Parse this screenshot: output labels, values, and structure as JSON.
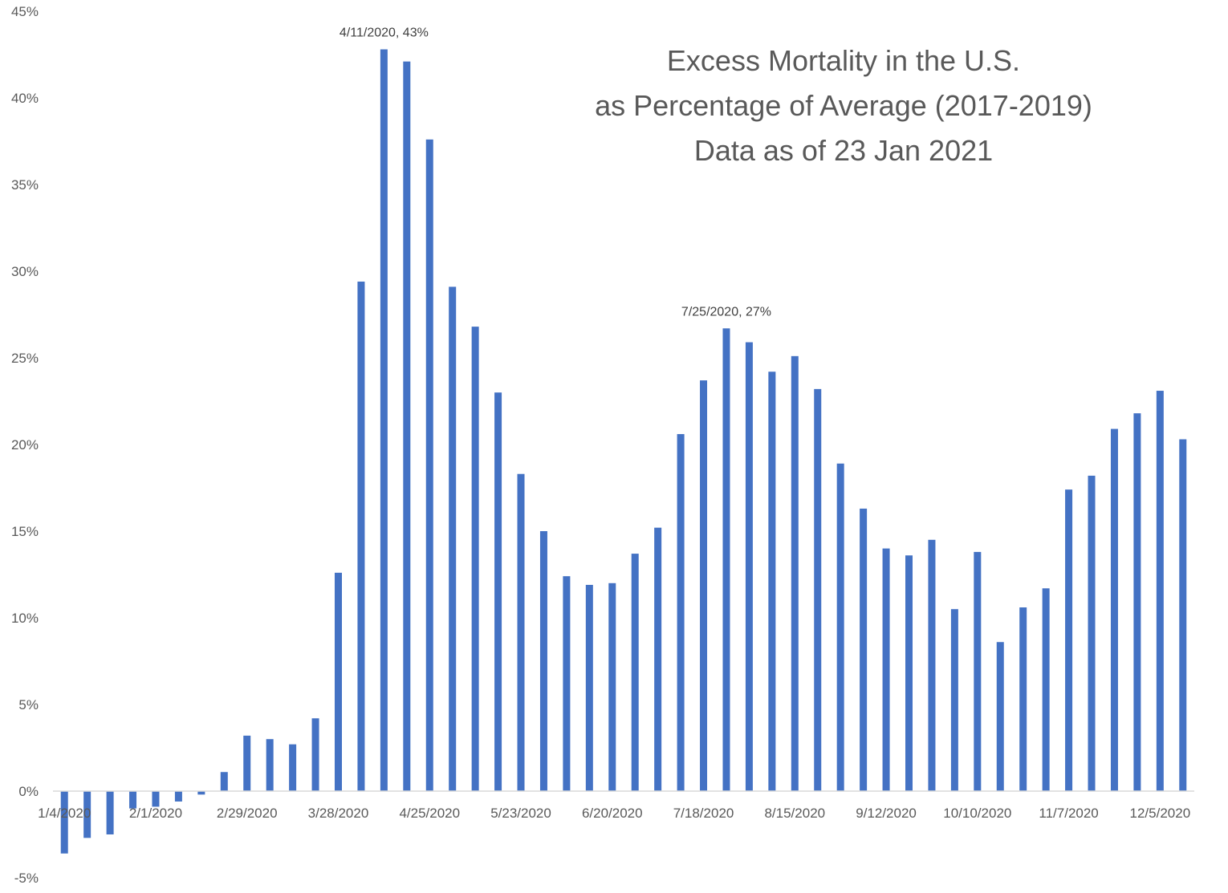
{
  "chart_data": {
    "type": "bar",
    "title_lines": [
      "Excess Mortality in the U.S.",
      "as Percentage of Average (2017-2019)",
      "Data as of 23 Jan 2021"
    ],
    "xlabel": "",
    "ylabel": "",
    "ylim": [
      -5,
      45
    ],
    "y_ticks": [
      "-5%",
      "0%",
      "5%",
      "10%",
      "15%",
      "20%",
      "25%",
      "30%",
      "35%",
      "40%",
      "45%"
    ],
    "grid": false,
    "legend": "none",
    "bar_color": "#4472C4",
    "week_start": "1/4/2020",
    "x_tick_labels": [
      "1/4/2020",
      "2/1/2020",
      "2/29/2020",
      "3/28/2020",
      "4/25/2020",
      "5/23/2020",
      "6/20/2020",
      "7/18/2020",
      "8/15/2020",
      "9/12/2020",
      "10/10/2020",
      "11/7/2020",
      "12/5/2020"
    ],
    "values": [
      -3.6,
      -2.7,
      -2.5,
      -1.0,
      -0.9,
      -0.6,
      -0.2,
      1.1,
      3.2,
      3.0,
      2.7,
      4.2,
      12.6,
      29.4,
      42.8,
      42.1,
      37.6,
      29.1,
      26.8,
      23.0,
      18.3,
      15.0,
      12.4,
      11.9,
      12.0,
      13.7,
      15.2,
      20.6,
      23.7,
      26.7,
      25.9,
      24.2,
      25.1,
      23.2,
      18.9,
      16.3,
      14.0,
      13.6,
      14.5,
      10.5,
      13.8,
      8.6,
      10.6,
      11.7,
      17.4,
      18.2,
      20.9,
      21.8,
      23.1,
      20.3
    ],
    "annotations": [
      {
        "index": 14,
        "text": "4/11/2020, 43%"
      },
      {
        "index": 29,
        "text": "7/25/2020, 27%"
      }
    ]
  }
}
